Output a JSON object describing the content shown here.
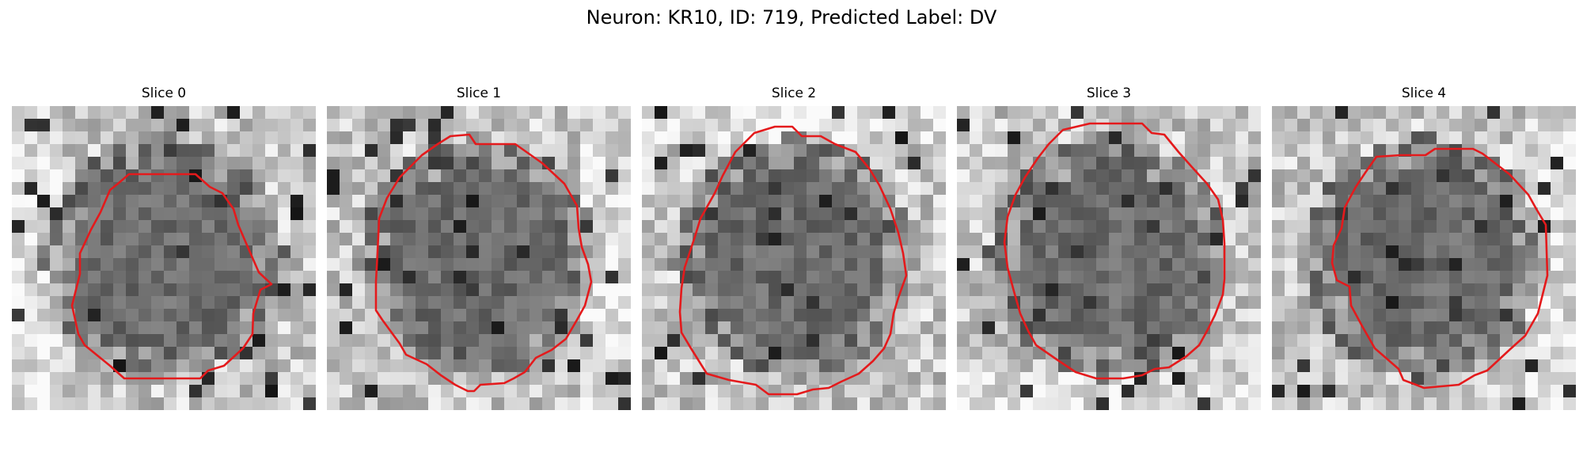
{
  "figure": {
    "title": "Neuron: KR10, ID: 719, Predicted Label: DV"
  },
  "panels": [
    {
      "title": "Slice 0",
      "seed": 11,
      "bright_from": "left"
    },
    {
      "title": "Slice 1",
      "seed": 23,
      "bright_from": "right"
    },
    {
      "title": "Slice 2",
      "seed": 37,
      "bright_from": "top"
    },
    {
      "title": "Slice 3",
      "seed": 41,
      "bright_from": "bottom"
    },
    {
      "title": "Slice 4",
      "seed": 53,
      "bright_from": "right"
    }
  ],
  "colors": {
    "contour": "#e41a1c"
  }
}
